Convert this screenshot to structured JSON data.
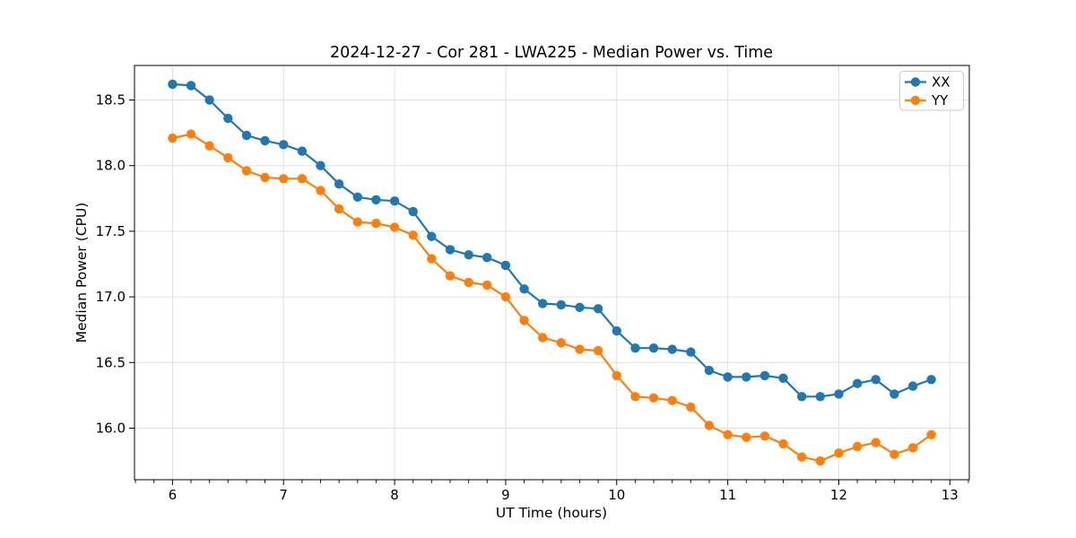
{
  "chart_data": {
    "type": "line",
    "title": "2024-12-27 - Cor 281 - LWA225 - Median Power vs. Time",
    "xlabel": "UT Time (hours)",
    "ylabel": "Median Power (CPU)",
    "grid": "major-both",
    "legend_position": "upper right",
    "xlim": [
      5.658,
      13.175
    ],
    "ylim": [
      15.607,
      18.763
    ],
    "x_major_ticks": [
      6,
      7,
      8,
      9,
      10,
      11,
      12,
      13
    ],
    "x_tick_labels": [
      "6",
      "7",
      "8",
      "9",
      "10",
      "11",
      "12",
      "13"
    ],
    "x_minor_tick_step_hours": 0.1667,
    "y_ticks": [
      16.0,
      16.5,
      17.0,
      17.5,
      18.0,
      18.5
    ],
    "y_tick_labels": [
      "16.0",
      "16.5",
      "17.0",
      "17.5",
      "18.0",
      "18.5"
    ],
    "x": [
      6.0,
      6.167,
      6.333,
      6.5,
      6.667,
      6.833,
      7.0,
      7.167,
      7.333,
      7.5,
      7.667,
      7.833,
      8.0,
      8.167,
      8.333,
      8.5,
      8.667,
      8.833,
      9.0,
      9.167,
      9.333,
      9.5,
      9.667,
      9.833,
      10.0,
      10.167,
      10.333,
      10.5,
      10.667,
      10.833,
      11.0,
      11.167,
      11.333,
      11.5,
      11.667,
      11.833,
      12.0,
      12.167,
      12.333,
      12.5,
      12.667,
      12.833
    ],
    "series": [
      {
        "name": "XX",
        "color": "#1f77b4",
        "values": [
          18.62,
          18.61,
          18.5,
          18.36,
          18.23,
          18.19,
          18.16,
          18.11,
          18.0,
          17.86,
          17.76,
          17.74,
          17.73,
          17.65,
          17.46,
          17.36,
          17.32,
          17.3,
          17.24,
          17.06,
          16.95,
          16.94,
          16.92,
          16.91,
          16.74,
          16.61,
          16.61,
          16.6,
          16.58,
          16.44,
          16.39,
          16.39,
          16.4,
          16.38,
          16.24,
          16.24,
          16.26,
          16.34,
          16.37,
          16.26,
          16.32,
          16.37
        ]
      },
      {
        "name": "YY",
        "color": "#ff7f0e",
        "values": [
          18.21,
          18.24,
          18.15,
          18.06,
          17.96,
          17.91,
          17.9,
          17.9,
          17.81,
          17.67,
          17.57,
          17.56,
          17.53,
          17.47,
          17.29,
          17.16,
          17.11,
          17.09,
          17.0,
          16.82,
          16.69,
          16.65,
          16.6,
          16.59,
          16.4,
          16.24,
          16.23,
          16.21,
          16.16,
          16.02,
          15.95,
          15.93,
          15.94,
          15.88,
          15.78,
          15.75,
          15.81,
          15.86,
          15.89,
          15.8,
          15.85,
          15.95
        ]
      }
    ],
    "colors": {
      "grid": "#e0e0e0",
      "spine": "#000000",
      "background": "#ffffff"
    }
  }
}
